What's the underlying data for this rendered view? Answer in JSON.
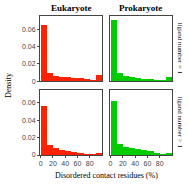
{
  "chart_data": [
    {
      "type": "histogram",
      "title": "Eukaryote",
      "color": "#FF2200",
      "bins": [
        0,
        10,
        20,
        30,
        40,
        50,
        60,
        70,
        80,
        90,
        100
      ],
      "values": [
        0.065,
        0.009,
        0.006,
        0.005,
        0.005,
        0.004,
        0.004,
        0.003,
        0.002,
        0.007
      ],
      "xlim": [
        -1,
        100
      ],
      "ylim": [
        0,
        0.075
      ],
      "xticks": [
        0,
        20,
        40,
        60,
        80
      ],
      "yticks": [
        0,
        0.02,
        0.04,
        0.06
      ],
      "tick_labels": "y",
      "grid": false
    },
    {
      "type": "histogram",
      "title": "Prokaryote",
      "annotation": "ligand number = 1",
      "color": "#00CC00",
      "bins": [
        0,
        10,
        20,
        30,
        40,
        50,
        60,
        70,
        80,
        90,
        100
      ],
      "values": [
        0.07,
        0.01,
        0.006,
        0.005,
        0.004,
        0.003,
        0.003,
        0.002,
        0.001,
        0.005
      ],
      "xlim": [
        -1,
        100
      ],
      "ylim": [
        0,
        0.075
      ],
      "xticks": [
        0,
        20,
        40,
        60,
        80
      ],
      "yticks": [
        0,
        0.02,
        0.04,
        0.06
      ],
      "tick_labels": false,
      "grid": false
    },
    {
      "type": "histogram",
      "xlabel": "Disordered contact residues (%)",
      "ylabel": "Density",
      "color": "#FF2200",
      "bins": [
        0,
        10,
        20,
        30,
        40,
        50,
        60,
        70,
        80,
        90,
        100
      ],
      "values": [
        0.057,
        0.012,
        0.008,
        0.006,
        0.005,
        0.004,
        0.003,
        0.002,
        0.001,
        0.003
      ],
      "xlim": [
        -1,
        100
      ],
      "ylim": [
        0,
        0.075
      ],
      "xticks": [
        0,
        20,
        40,
        60,
        80
      ],
      "yticks": [
        0,
        0.02,
        0.04,
        0.06
      ],
      "tick_labels": true,
      "grid": false
    },
    {
      "type": "histogram",
      "annotation": "ligand number > 1",
      "color": "#00CC00",
      "bins": [
        0,
        10,
        20,
        30,
        40,
        50,
        60,
        70,
        80,
        90,
        100
      ],
      "values": [
        0.062,
        0.013,
        0.01,
        0.008,
        0.007,
        0.006,
        0.005,
        0.003,
        0.002,
        0.003
      ],
      "xlim": [
        -1,
        100
      ],
      "ylim": [
        0,
        0.075
      ],
      "xticks": [
        0,
        20,
        40,
        60,
        80
      ],
      "yticks": [
        0,
        0.02,
        0.04,
        0.06
      ],
      "tick_labels": "x",
      "grid": false
    }
  ]
}
